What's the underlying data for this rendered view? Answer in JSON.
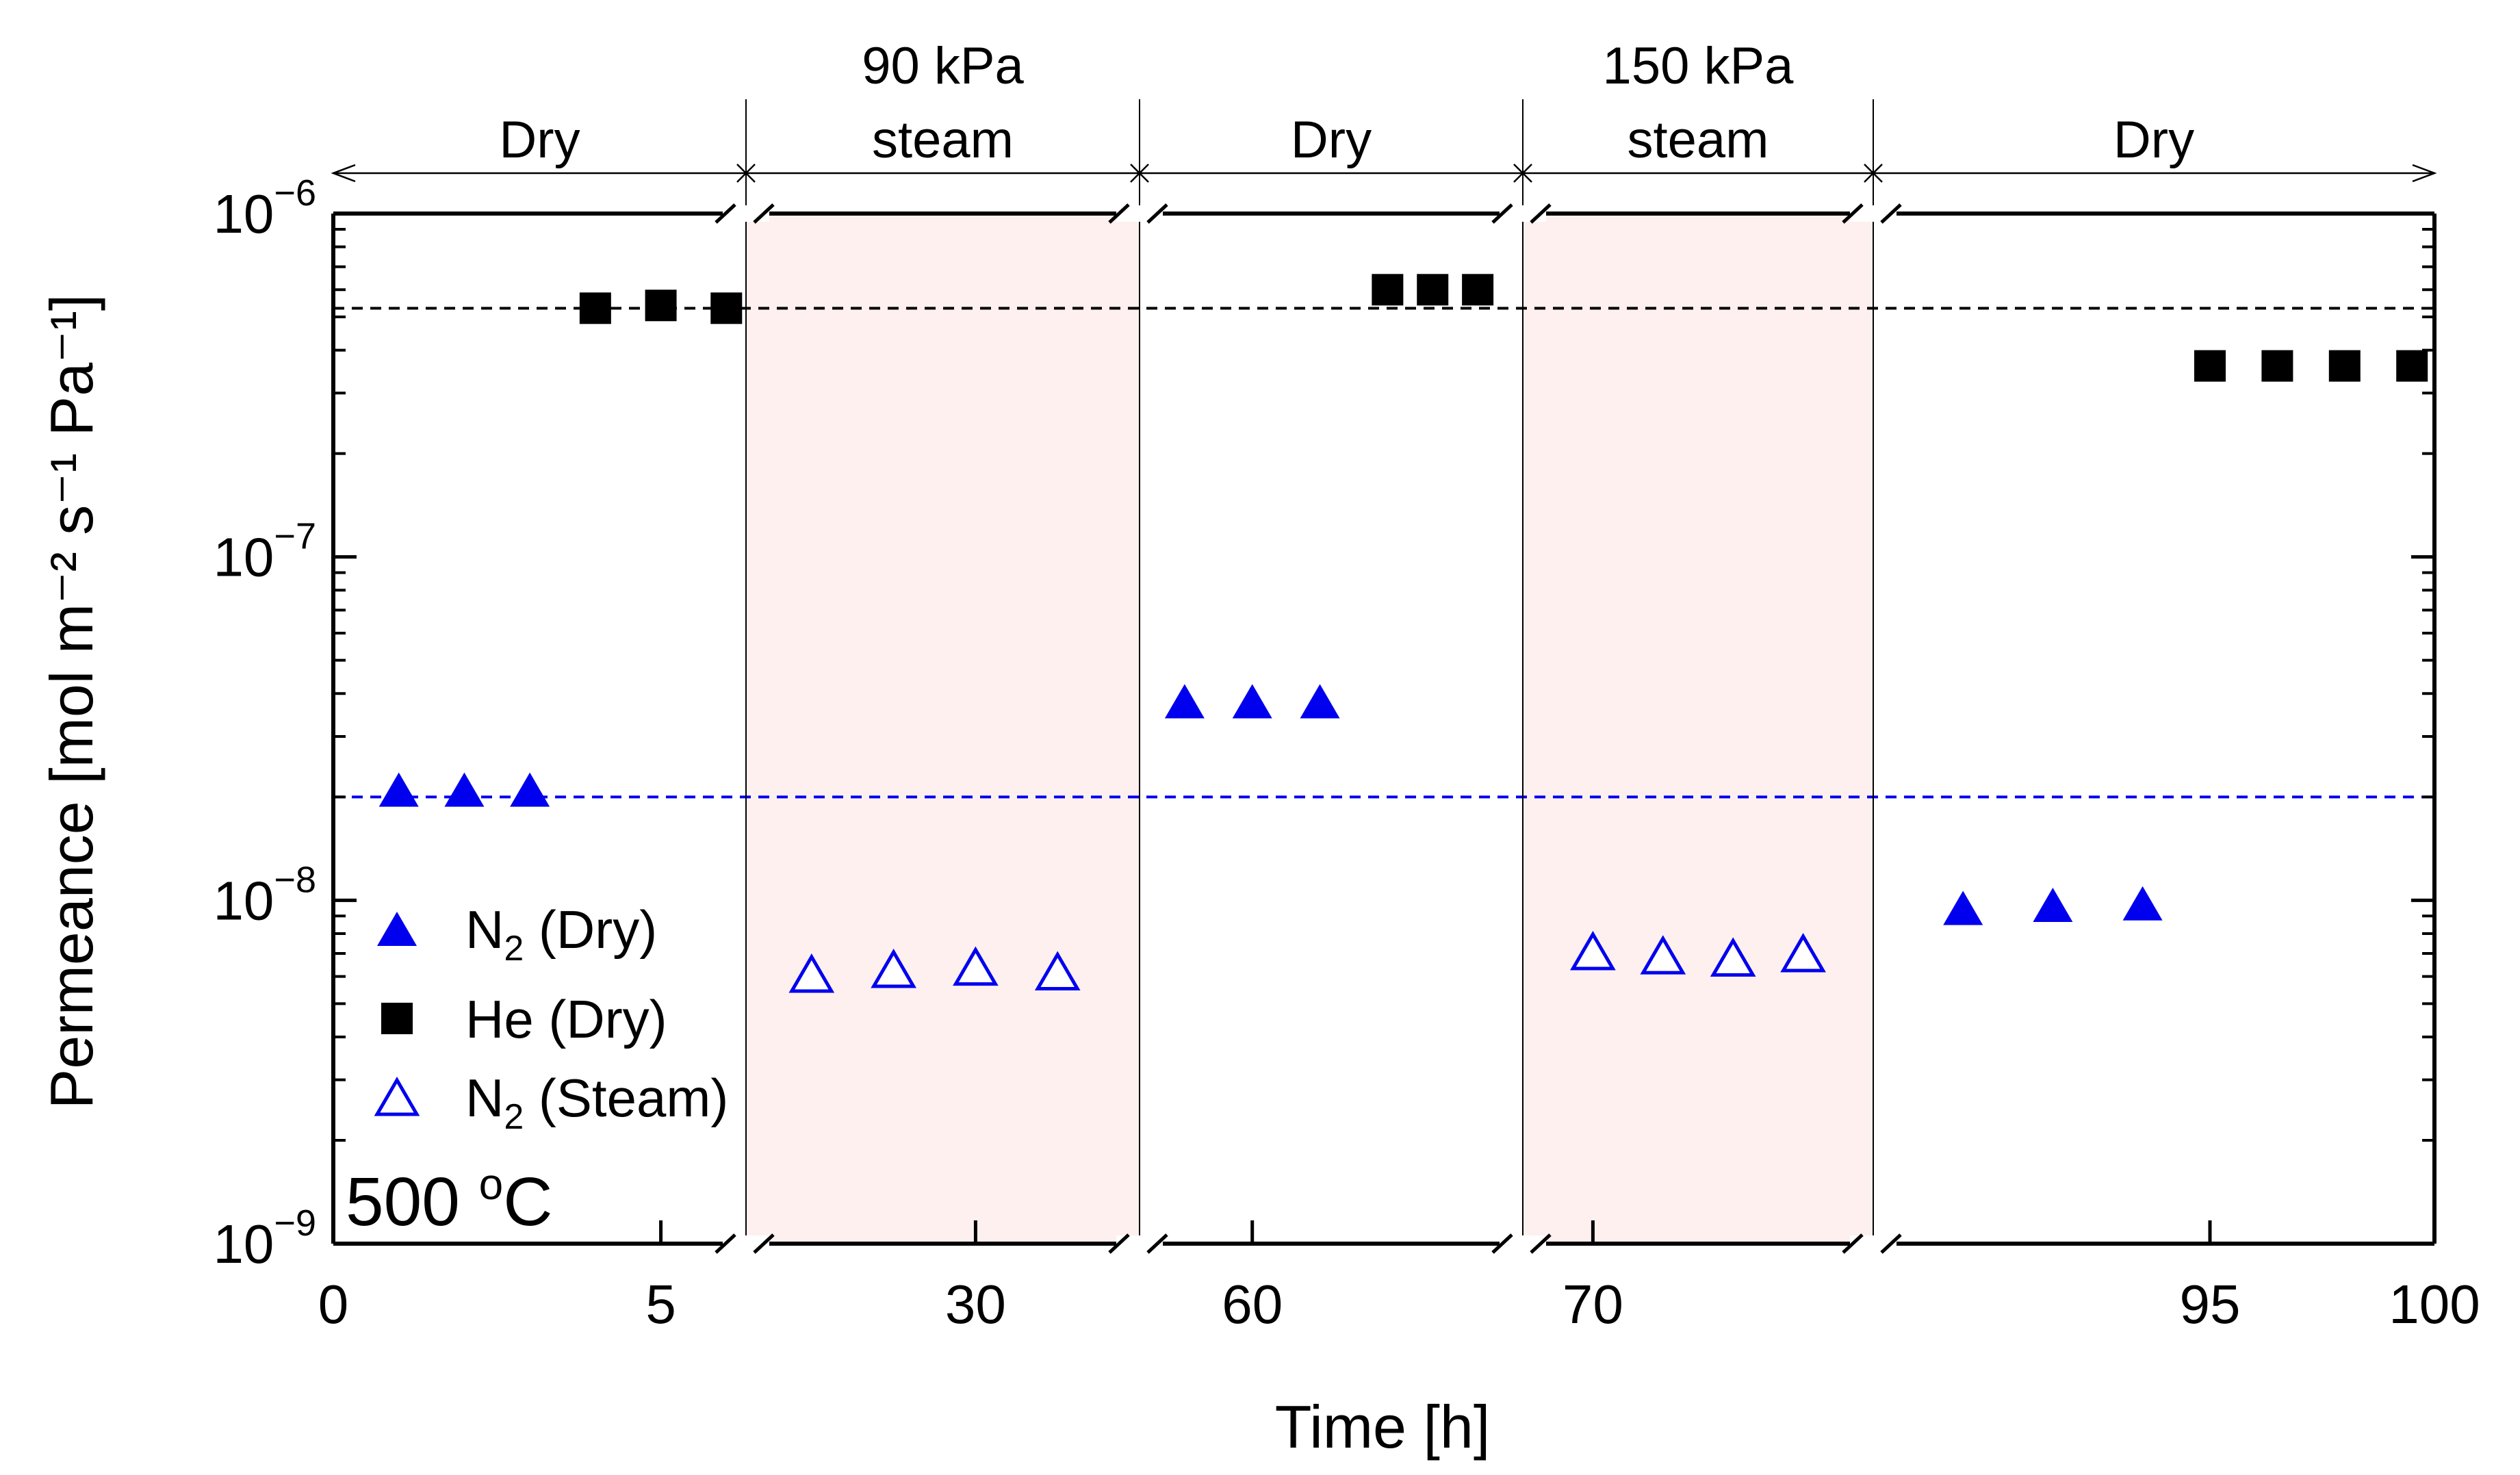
{
  "chart_data": {
    "type": "scatter",
    "title": "",
    "xlabel": "Time [h]",
    "ylabel": "Permeance [mol m⁻² s⁻¹ Pa⁻¹]",
    "y_scale": "log",
    "ylim": [
      1e-09,
      1e-06
    ],
    "y_ticks": [
      {
        "base": "10",
        "exp": "−9"
      },
      {
        "base": "10",
        "exp": "−8"
      },
      {
        "base": "10",
        "exp": "−7"
      },
      {
        "base": "10",
        "exp": "−6"
      }
    ],
    "x_axis_broken": true,
    "x_tick_labels": [
      "0",
      "5",
      "30",
      "60",
      "70",
      "95",
      "100"
    ],
    "phases": [
      {
        "label_lines": [
          "Dry"
        ],
        "shaded": false
      },
      {
        "label_lines": [
          "90 kPa",
          "steam"
        ],
        "shaded": true
      },
      {
        "label_lines": [
          "Dry"
        ],
        "shaded": false
      },
      {
        "label_lines": [
          "150 kPa",
          "steam"
        ],
        "shaded": true
      },
      {
        "label_lines": [
          "Dry"
        ],
        "shaded": false
      }
    ],
    "series": [
      {
        "name": "N2 (Dry)",
        "name_main": "N",
        "name_sub": "2",
        "name_suffix": " (Dry)",
        "marker": "filled-triangle",
        "color": "#0000ee",
        "points": [
          {
            "x": 1,
            "y": 2.1e-08
          },
          {
            "x": 2,
            "y": 2.1e-08
          },
          {
            "x": 3,
            "y": 2.1e-08
          },
          {
            "x": 57,
            "y": 3.8e-08
          },
          {
            "x": 60,
            "y": 3.8e-08
          },
          {
            "x": 63,
            "y": 3.8e-08
          },
          {
            "x": 89.5,
            "y": 9.5e-09
          },
          {
            "x": 91.5,
            "y": 9.7e-09
          },
          {
            "x": 93.5,
            "y": 9.8e-09
          }
        ]
      },
      {
        "name": "He (Dry)",
        "name_main": "He",
        "name_sub": "",
        "name_suffix": " (Dry)",
        "marker": "filled-square",
        "color": "#000000",
        "points": [
          {
            "x": 4,
            "y": 5.3e-07
          },
          {
            "x": 5,
            "y": 5.4e-07
          },
          {
            "x": 6,
            "y": 5.3e-07
          },
          {
            "x": 66,
            "y": 6e-07
          },
          {
            "x": 68,
            "y": 6e-07
          },
          {
            "x": 70,
            "y": 6e-07
          },
          {
            "x": 95,
            "y": 3.6e-07
          },
          {
            "x": 96.5,
            "y": 3.6e-07
          },
          {
            "x": 98,
            "y": 3.6e-07
          },
          {
            "x": 99.5,
            "y": 3.6e-07
          }
        ]
      },
      {
        "name": "N2 (Steam)",
        "name_main": "N",
        "name_sub": "2",
        "name_suffix": " (Steam)",
        "marker": "open-triangle",
        "color": "#0000ee",
        "points": [
          {
            "x": 25,
            "y": 6.1e-09
          },
          {
            "x": 27.5,
            "y": 6.3e-09
          },
          {
            "x": 30,
            "y": 6.4e-09
          },
          {
            "x": 32.5,
            "y": 6.2e-09
          },
          {
            "x": 70,
            "y": 7.1e-09
          },
          {
            "x": 72,
            "y": 6.9e-09
          },
          {
            "x": 74,
            "y": 6.8e-09
          },
          {
            "x": 76,
            "y": 7e-09
          }
        ]
      }
    ],
    "reference_lines": [
      {
        "y": 5.3e-07,
        "color": "#000000",
        "style": "dashed"
      },
      {
        "y": 2e-08,
        "color": "#0000ee",
        "style": "dashed"
      }
    ],
    "legend_position": "lower-left",
    "annotation": {
      "text": "500 ",
      "sup": "o",
      "unit": "C"
    }
  }
}
